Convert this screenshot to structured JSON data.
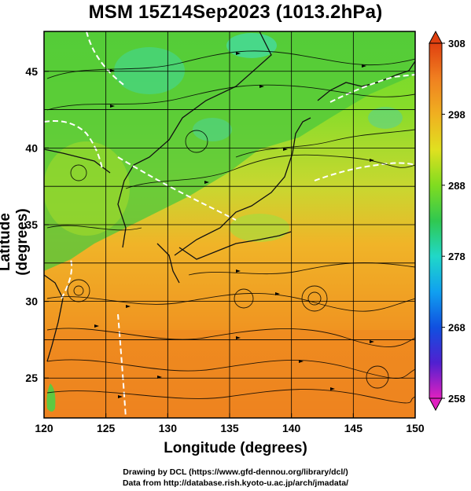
{
  "title": "MSM 15Z14Sep2023 (1013.2hPa)",
  "axes": {
    "xlabel": "Longitude (degrees)",
    "ylabel": "Latitude  (degrees)",
    "x_ticks": [
      "120",
      "125",
      "130",
      "135",
      "140",
      "145",
      "150"
    ],
    "y_ticks": [
      "25",
      "30",
      "35",
      "40",
      "45"
    ],
    "lon_range": [
      120,
      150
    ],
    "lat_range": [
      22.4,
      47.6
    ]
  },
  "colorbar": {
    "ticks": [
      "308",
      "298",
      "288",
      "278",
      "268",
      "258"
    ],
    "min": 258,
    "max": 308,
    "colors": [
      "#e020c0",
      "#5020d0",
      "#1050e0",
      "#10a0f0",
      "#20d8c8",
      "#30c850",
      "#80dc20",
      "#e0e020",
      "#f0b020",
      "#f08020",
      "#e04010"
    ]
  },
  "credits": {
    "line1": "Drawing by DCL (https://www.gfd-dennou.org/library/dcl/)",
    "line2": "Data from http://database.rish.kyoto-u.ac.jp/arch/jmadata/"
  }
}
